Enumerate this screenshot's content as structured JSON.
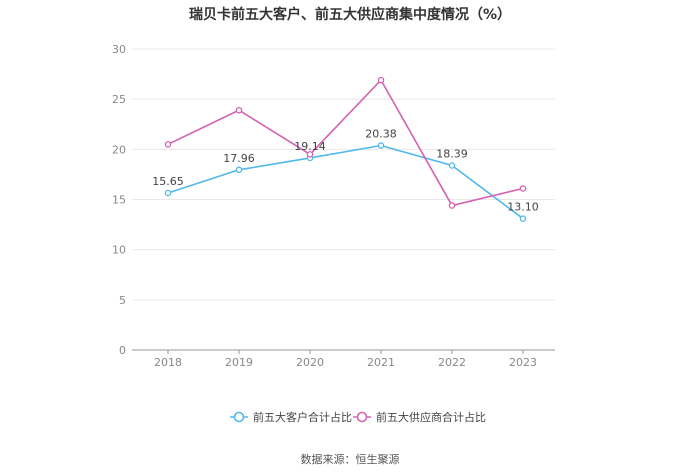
{
  "chart_data": {
    "type": "line",
    "title": "瑞贝卡前五大客户、前五大供应商集中度情况（%）",
    "categories": [
      "2018",
      "2019",
      "2020",
      "2021",
      "2022",
      "2023"
    ],
    "ylim": [
      0,
      30
    ],
    "yticks": [
      0,
      5,
      10,
      15,
      20,
      25,
      30
    ],
    "grid": true,
    "legend_position": "bottom",
    "series": [
      {
        "name": "前五大客户合计占比",
        "color": "#4fb9e8",
        "values": [
          15.65,
          17.96,
          19.14,
          20.38,
          18.39,
          13.1
        ],
        "labels": [
          "15.65",
          "17.96",
          "19.14",
          "20.38",
          "18.39",
          "13.10"
        ]
      },
      {
        "name": "前五大供应商合计占比",
        "color": "#d462b0",
        "values": [
          20.5,
          23.9,
          19.5,
          26.9,
          14.4,
          16.1
        ]
      }
    ],
    "source": "数据来源：恒生聚源"
  }
}
